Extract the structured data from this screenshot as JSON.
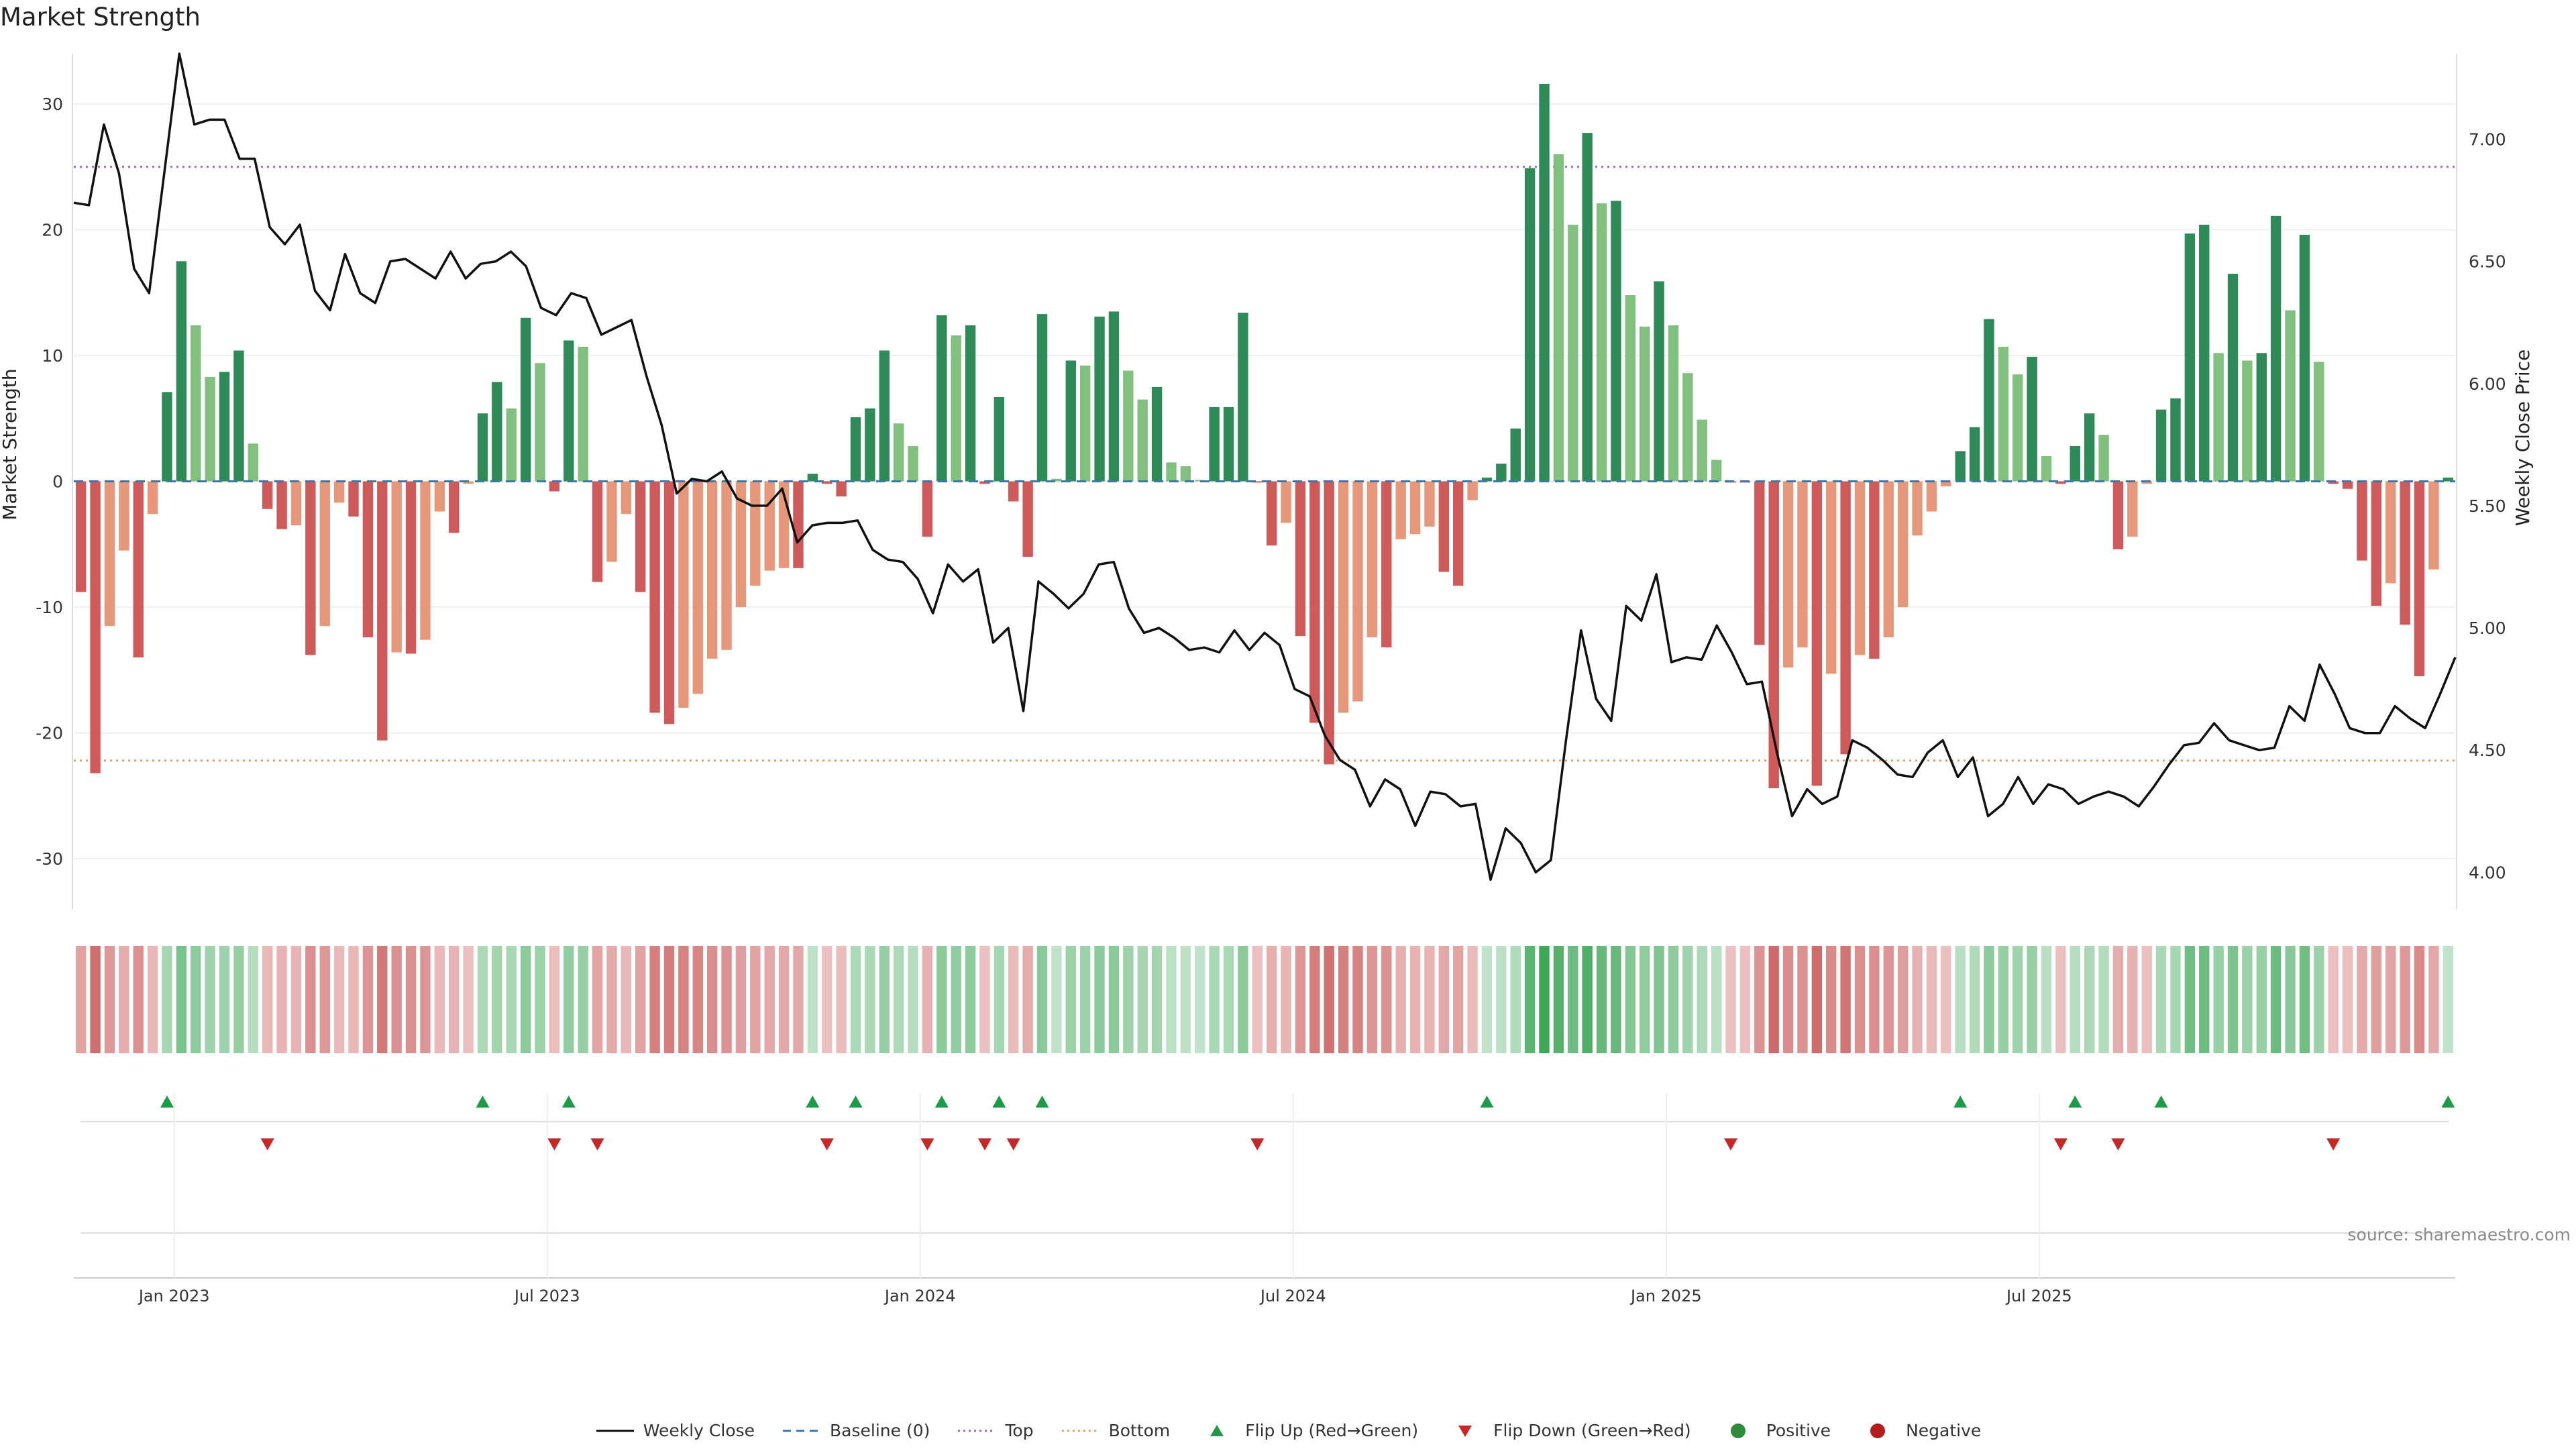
{
  "chart_data": {
    "type": "bar+line",
    "title": "Market Strength",
    "ylabel_left": "Market Strength",
    "ylabel_right": "Weekly Close Price",
    "ylim_left": [
      -34,
      34
    ],
    "ylim_right": [
      3.85,
      7.35
    ],
    "yticks_left": [
      -30,
      -20,
      -10,
      0,
      10,
      20,
      30
    ],
    "yticks_right": [
      "4.00",
      "4.50",
      "5.00",
      "5.50",
      "6.00",
      "6.50",
      "7.00"
    ],
    "top_threshold": 25,
    "bottom_threshold": -22.2,
    "x_tick_labels": [
      "Jan 2023",
      "Jul 2023",
      "Jan 2024",
      "Jul 2024",
      "Jan 2025",
      "Jul 2025"
    ],
    "x_tick_weeks": [
      7,
      33,
      59,
      85,
      111,
      137
    ],
    "strength": [
      -8.8,
      -23.2,
      -11.5,
      -5.5,
      -14,
      -2.6,
      7.1,
      17.5,
      12.4,
      8.3,
      8.7,
      10.4,
      3,
      -2.2,
      -3.8,
      -3.5,
      -13.8,
      -11.5,
      -1.7,
      -2.8,
      -12.4,
      -20.6,
      -13.6,
      -13.7,
      -12.6,
      -2.4,
      -4.1,
      -0.2,
      5.4,
      7.9,
      5.8,
      13,
      9.4,
      -0.8,
      11.2,
      10.7,
      -8,
      -6.4,
      -2.6,
      -8.8,
      -18.4,
      -19.3,
      -18,
      -16.9,
      -14.1,
      -13.4,
      -10,
      -8.3,
      -7.1,
      -6.9,
      -6.9,
      0.6,
      -0.2,
      -1.2,
      5.1,
      5.8,
      10.4,
      4.6,
      2.8,
      -4.4,
      13.2,
      11.6,
      12.4,
      -0.2,
      6.7,
      -1.6,
      -6,
      13.3,
      0.2,
      9.6,
      9.2,
      13.1,
      13.5,
      8.8,
      6.5,
      7.5,
      1.5,
      1.2,
      0.1,
      5.9,
      5.9,
      13.4,
      -0.1,
      -5.1,
      -3.3,
      -12.3,
      -19.2,
      -22.5,
      -18.4,
      -17.5,
      -12.4,
      -13.2,
      -4.6,
      -4.2,
      -3.6,
      -7.2,
      -8.3,
      -1.5,
      0.3,
      1.4,
      4.2,
      24.9,
      31.6,
      26,
      20.4,
      27.7,
      22.1,
      22.3,
      14.8,
      12.3,
      15.9,
      12.4,
      8.6,
      4.9,
      1.7,
      -0.1,
      -0.1,
      -13,
      -24.4,
      -14.8,
      -13.2,
      -24.2,
      -15.3,
      -21.7,
      -13.8,
      -14.1,
      -12.4,
      -10,
      -4.3,
      -2.4,
      -0.4,
      2.4,
      4.3,
      12.9,
      10.7,
      8.5,
      9.9,
      2,
      -0.2,
      2.8,
      5.4,
      3.7,
      -5.4,
      -4.4,
      -0.2,
      5.7,
      6.6,
      19.7,
      20.4,
      10.2,
      16.5,
      9.6,
      10.2,
      21.1,
      13.6,
      19.6,
      9.5,
      -0.2,
      -0.6,
      -6.3,
      -9.9,
      -8.1,
      -11.4,
      -15.5,
      -7,
      0.3
    ],
    "weekly_close": [
      6.74,
      6.73,
      7.06,
      6.86,
      6.47,
      6.37,
      6.86,
      7.35,
      7.06,
      7.08,
      7.08,
      6.92,
      6.92,
      6.64,
      6.57,
      6.65,
      6.38,
      6.3,
      6.53,
      6.37,
      6.33,
      6.5,
      6.51,
      6.47,
      6.43,
      6.54,
      6.43,
      6.49,
      6.5,
      6.54,
      6.48,
      6.31,
      6.28,
      6.37,
      6.35,
      6.2,
      6.23,
      6.26,
      6.03,
      5.83,
      5.55,
      5.61,
      5.6,
      5.64,
      5.53,
      5.5,
      5.5,
      5.57,
      5.35,
      5.42,
      5.43,
      5.43,
      5.44,
      5.32,
      5.28,
      5.27,
      5.2,
      5.06,
      5.26,
      5.19,
      5.24,
      4.94,
      5.0,
      4.66,
      5.19,
      5.14,
      5.08,
      5.14,
      5.26,
      5.27,
      5.08,
      4.98,
      5.0,
      4.96,
      4.91,
      4.92,
      4.9,
      4.99,
      4.91,
      4.98,
      4.93,
      4.75,
      4.72,
      4.56,
      4.46,
      4.42,
      4.27,
      4.38,
      4.34,
      4.19,
      4.33,
      4.32,
      4.27,
      4.28,
      3.97,
      4.18,
      4.12,
      4.0,
      4.05,
      4.54,
      4.99,
      4.71,
      4.62,
      5.09,
      5.03,
      5.22,
      4.86,
      4.88,
      4.87,
      5.01,
      4.9,
      4.77,
      4.78,
      4.49,
      4.23,
      4.34,
      4.28,
      4.31,
      4.54,
      4.51,
      4.46,
      4.4,
      4.39,
      4.49,
      4.54,
      4.39,
      4.47,
      4.23,
      4.28,
      4.39,
      4.28,
      4.36,
      4.34,
      4.28,
      4.31,
      4.33,
      4.31,
      4.27,
      4.35,
      4.44,
      4.52,
      4.53,
      4.61,
      4.54,
      4.52,
      4.5,
      4.51,
      4.68,
      4.62,
      4.85,
      4.73,
      4.59,
      4.57,
      4.57,
      4.68,
      4.63,
      4.59,
      4.73,
      4.88
    ]
  },
  "legend": [
    {
      "label": "Weekly Close",
      "kind": "line-solid",
      "color": "#111111"
    },
    {
      "label": "Baseline (0)",
      "kind": "line-dash",
      "color": "#3a78b0"
    },
    {
      "label": "Top",
      "kind": "line-dot",
      "color": "#9a6cc4"
    },
    {
      "label": "Bottom",
      "kind": "line-dot",
      "color": "#e8a06a"
    },
    {
      "label": "Flip Up (Red→Green)",
      "kind": "tri-up",
      "color": "#1f9a4a"
    },
    {
      "label": "Flip Down (Green→Red)",
      "kind": "tri-down",
      "color": "#c62828"
    },
    {
      "label": "Positive",
      "kind": "dot",
      "color": "#2e8b3a"
    },
    {
      "label": "Negative",
      "kind": "dot",
      "color": "#b71c1c"
    }
  ],
  "source": "source: sharemaestro.com",
  "colors": {
    "pos_strong": "#2e8a56",
    "pos_weak": "#81c07e",
    "neg_strong": "#cf5a5a",
    "neg_weak": "#e8987a",
    "flip_up": "#1f9a4a",
    "flip_down": "#c62828",
    "top_line": "#9a6cc4",
    "bottom_line": "#e8a06a",
    "baseline": "#3a78b0"
  }
}
